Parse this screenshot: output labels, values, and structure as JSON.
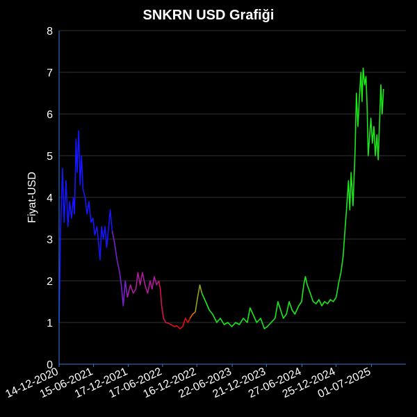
{
  "chart_data": {
    "type": "line",
    "title": "SNKRN USD Grafiği",
    "xlabel": "",
    "ylabel": "Fiyat-USD",
    "ylim": [
      0,
      8
    ],
    "yticks": [
      "0",
      "1",
      "2",
      "3",
      "4",
      "5",
      "6",
      "7",
      "8"
    ],
    "xlim": [
      "2020-12-14",
      "2025-12-31"
    ],
    "xticks": [
      {
        "date": "2020-12-14",
        "label": "14-12-2020"
      },
      {
        "date": "2021-06-15",
        "label": "15-06-2021"
      },
      {
        "date": "2021-12-17",
        "label": "17-12-2021"
      },
      {
        "date": "2022-06-17",
        "label": "17-06-2022"
      },
      {
        "date": "2022-12-16",
        "label": "16-12-2022"
      },
      {
        "date": "2023-06-22",
        "label": "22-06-2023"
      },
      {
        "date": "2023-12-21",
        "label": "21-12-2023"
      },
      {
        "date": "2024-06-27",
        "label": "27-06-2024"
      },
      {
        "date": "2024-12-25",
        "label": "25-12-2024"
      },
      {
        "date": "2025-07-01",
        "label": "01-07-2025"
      }
    ],
    "grid": true,
    "colors": {
      "background": "#000000",
      "grid": "#333333",
      "axis": "#3a7bd5",
      "text": "#ffffff"
    },
    "series": [
      {
        "segments": [
          {
            "color": "#1515ff",
            "points": [
              [
                "2020-12-14",
                1.0
              ],
              [
                "2020-12-22",
                3.2
              ],
              [
                "2021-01-01",
                4.7
              ],
              [
                "2021-01-10",
                3.4
              ],
              [
                "2021-01-20",
                4.4
              ],
              [
                "2021-01-30",
                3.3
              ],
              [
                "2021-02-08",
                3.9
              ],
              [
                "2021-02-18",
                3.5
              ],
              [
                "2021-02-28",
                4.0
              ],
              [
                "2021-03-06",
                3.6
              ],
              [
                "2021-03-14",
                5.4
              ],
              [
                "2021-03-20",
                4.6
              ],
              [
                "2021-03-28",
                5.6
              ],
              [
                "2021-04-05",
                4.3
              ],
              [
                "2021-04-12",
                5.0
              ],
              [
                "2021-04-20",
                4.2
              ],
              [
                "2021-05-01",
                4.0
              ],
              [
                "2021-05-12",
                3.6
              ],
              [
                "2021-05-22",
                3.9
              ],
              [
                "2021-06-02",
                3.4
              ],
              [
                "2021-06-12",
                3.5
              ],
              [
                "2021-06-22",
                3.1
              ],
              [
                "2021-07-03",
                3.3
              ],
              [
                "2021-07-12",
                2.9
              ],
              [
                "2021-07-20",
                2.5
              ],
              [
                "2021-07-28",
                3.3
              ],
              [
                "2021-08-06",
                3.0
              ],
              [
                "2021-08-15",
                3.3
              ],
              [
                "2021-08-24",
                2.8
              ],
              [
                "2021-09-02",
                3.2
              ],
              [
                "2021-09-12",
                3.7
              ],
              [
                "2021-09-22",
                3.2
              ]
            ]
          },
          {
            "color": "#7a1fd0",
            "points": [
              [
                "2021-09-22",
                3.2
              ],
              [
                "2021-10-05",
                2.9
              ],
              [
                "2021-10-18",
                2.5
              ],
              [
                "2021-11-01",
                2.2
              ],
              [
                "2021-11-12",
                1.8
              ],
              [
                "2021-11-20",
                1.4
              ],
              [
                "2021-12-01",
                2.0
              ],
              [
                "2021-12-12",
                1.6
              ]
            ]
          },
          {
            "color": "#b01a9c",
            "points": [
              [
                "2021-12-12",
                1.6
              ],
              [
                "2021-12-28",
                1.9
              ],
              [
                "2022-01-12",
                1.7
              ],
              [
                "2022-01-26",
                1.8
              ],
              [
                "2022-02-06",
                2.2
              ],
              [
                "2022-02-18",
                1.9
              ],
              [
                "2022-03-02",
                2.2
              ],
              [
                "2022-03-16",
                1.9
              ],
              [
                "2022-03-30",
                1.7
              ],
              [
                "2022-04-12",
                2.0
              ],
              [
                "2022-04-22",
                1.8
              ],
              [
                "2022-05-04",
                2.1
              ],
              [
                "2022-05-16",
                1.9
              ],
              [
                "2022-05-28",
                2.0
              ]
            ]
          },
          {
            "color": "#d01650",
            "points": [
              [
                "2022-05-28",
                2.0
              ],
              [
                "2022-06-05",
                1.8
              ],
              [
                "2022-06-12",
                1.4
              ],
              [
                "2022-06-22",
                1.1
              ],
              [
                "2022-07-04",
                1.0
              ],
              [
                "2022-07-18",
                0.98
              ]
            ]
          },
          {
            "color": "#e01010",
            "points": [
              [
                "2022-07-18",
                0.98
              ],
              [
                "2022-08-01",
                0.95
              ],
              [
                "2022-08-18",
                0.9
              ],
              [
                "2022-09-01",
                0.92
              ],
              [
                "2022-09-18",
                0.85
              ],
              [
                "2022-10-02",
                0.9
              ],
              [
                "2022-10-16",
                1.1
              ],
              [
                "2022-10-30",
                1.0
              ],
              [
                "2022-11-10",
                1.1
              ]
            ]
          },
          {
            "color": "#ea6a08",
            "points": [
              [
                "2022-11-10",
                1.1
              ],
              [
                "2022-11-24",
                1.2
              ],
              [
                "2022-12-08",
                1.25
              ]
            ]
          },
          {
            "color": "#9aa21a",
            "points": [
              [
                "2022-12-08",
                1.25
              ],
              [
                "2022-12-20",
                1.6
              ],
              [
                "2023-01-01",
                1.9
              ],
              [
                "2023-01-12",
                1.7
              ]
            ]
          },
          {
            "color": "#1aea1a",
            "points": [
              [
                "2023-01-12",
                1.7
              ],
              [
                "2023-02-01",
                1.5
              ],
              [
                "2023-02-20",
                1.3
              ],
              [
                "2023-03-10",
                1.2
              ],
              [
                "2023-04-01",
                1.0
              ],
              [
                "2023-04-20",
                1.1
              ],
              [
                "2023-05-10",
                0.95
              ],
              [
                "2023-05-30",
                1.0
              ],
              [
                "2023-06-20",
                0.9
              ],
              [
                "2023-07-10",
                1.0
              ],
              [
                "2023-07-30",
                0.95
              ],
              [
                "2023-08-20",
                1.1
              ],
              [
                "2023-09-10",
                1.0
              ],
              [
                "2023-09-25",
                1.35
              ],
              [
                "2023-10-10",
                1.2
              ],
              [
                "2023-10-30",
                1.0
              ],
              [
                "2023-11-20",
                1.1
              ],
              [
                "2023-12-10",
                0.85
              ],
              [
                "2023-12-25",
                0.9
              ],
              [
                "2024-01-15",
                1.0
              ],
              [
                "2024-02-05",
                1.1
              ],
              [
                "2024-02-20",
                1.5
              ],
              [
                "2024-03-05",
                1.3
              ],
              [
                "2024-03-20",
                1.1
              ],
              [
                "2024-04-05",
                1.2
              ],
              [
                "2024-04-20",
                1.5
              ],
              [
                "2024-05-05",
                1.3
              ],
              [
                "2024-05-20",
                1.2
              ],
              [
                "2024-06-10",
                1.4
              ],
              [
                "2024-06-25",
                1.5
              ],
              [
                "2024-07-06",
                1.9
              ],
              [
                "2024-07-15",
                2.1
              ],
              [
                "2024-07-25",
                1.9
              ],
              [
                "2024-08-10",
                1.7
              ],
              [
                "2024-08-25",
                1.5
              ],
              [
                "2024-09-10",
                1.45
              ],
              [
                "2024-09-25",
                1.55
              ],
              [
                "2024-10-10",
                1.4
              ],
              [
                "2024-10-25",
                1.5
              ],
              [
                "2024-11-10",
                1.45
              ],
              [
                "2024-11-25",
                1.55
              ],
              [
                "2024-12-10",
                1.5
              ],
              [
                "2024-12-25",
                1.6
              ],
              [
                "2025-01-10",
                2.0
              ],
              [
                "2025-01-20",
                2.2
              ],
              [
                "2025-02-01",
                2.6
              ],
              [
                "2025-02-10",
                3.2
              ],
              [
                "2025-02-20",
                3.8
              ],
              [
                "2025-03-01",
                4.4
              ],
              [
                "2025-03-08",
                3.7
              ],
              [
                "2025-03-15",
                4.6
              ],
              [
                "2025-03-25",
                3.8
              ],
              [
                "2025-04-05",
                5.1
              ],
              [
                "2025-04-12",
                6.5
              ],
              [
                "2025-04-20",
                5.7
              ],
              [
                "2025-04-28",
                6.4
              ],
              [
                "2025-05-06",
                7.0
              ],
              [
                "2025-05-12",
                6.3
              ],
              [
                "2025-05-18",
                7.1
              ],
              [
                "2025-05-26",
                6.7
              ],
              [
                "2025-06-02",
                6.9
              ],
              [
                "2025-06-08",
                6.2
              ],
              [
                "2025-06-14",
                5.0
              ],
              [
                "2025-06-20",
                5.4
              ],
              [
                "2025-06-28",
                5.9
              ],
              [
                "2025-07-06",
                5.3
              ],
              [
                "2025-07-14",
                5.7
              ],
              [
                "2025-07-22",
                5.0
              ],
              [
                "2025-07-30",
                5.5
              ],
              [
                "2025-08-06",
                4.9
              ],
              [
                "2025-08-13",
                5.8
              ],
              [
                "2025-08-20",
                6.7
              ],
              [
                "2025-08-27",
                6.0
              ],
              [
                "2025-09-03",
                6.6
              ]
            ]
          }
        ]
      }
    ]
  }
}
